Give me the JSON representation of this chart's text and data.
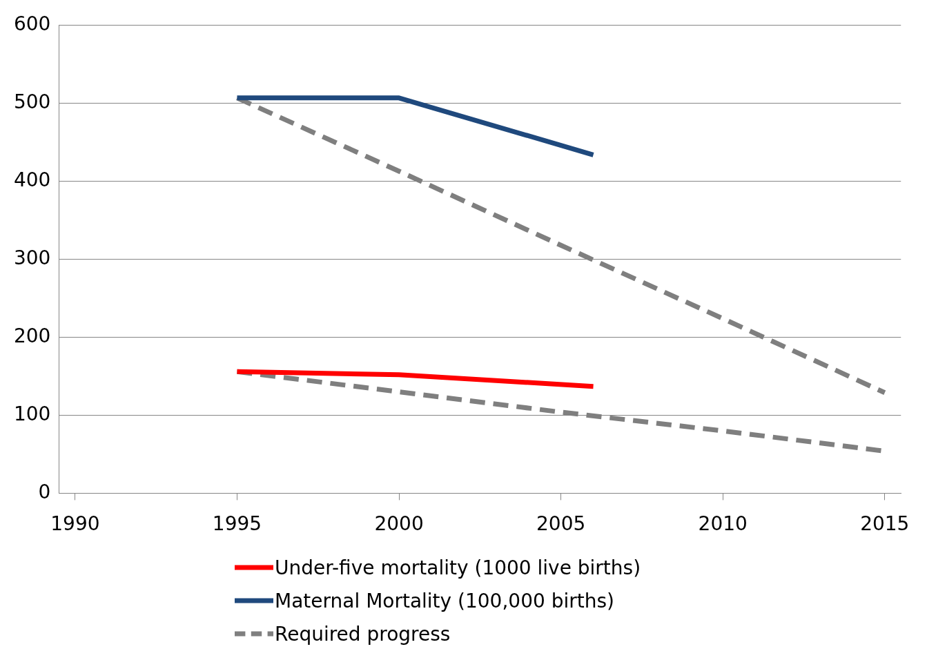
{
  "chart_data": {
    "type": "line",
    "xlim": [
      1989.5,
      2015.5
    ],
    "xticks": [
      1990,
      1995,
      2000,
      2005,
      2010,
      2015
    ],
    "ylim": [
      0,
      600
    ],
    "yticks": [
      0,
      100,
      200,
      300,
      400,
      500,
      600
    ],
    "grid": "y",
    "legend": "bottom",
    "marker": "none",
    "series": [
      {
        "name": "Under-five mortality (1000 live births)",
        "color": "#ff0000",
        "x": [
          1995,
          2000,
          2006
        ],
        "values": [
          156,
          152,
          137
        ],
        "line_style": "solid"
      },
      {
        "name": "Maternal Mortality (100,000 births)",
        "color": "#1f497d",
        "x": [
          1995,
          2000,
          2006
        ],
        "values": [
          507,
          507,
          434
        ],
        "line_style": "solid"
      },
      {
        "name": "Required progress",
        "color": "#7f7f7f",
        "x": [
          1995,
          2000,
          2005,
          2010,
          2015
        ],
        "values": [
          156,
          130,
          104,
          80,
          54
        ],
        "line_style": "dashed"
      },
      {
        "name": null,
        "color": "#7f7f7f",
        "x": [
          1995,
          2000,
          2005,
          2010,
          2015
        ],
        "values": [
          507,
          413,
          318,
          224,
          129
        ],
        "line_style": "dashed"
      }
    ]
  }
}
